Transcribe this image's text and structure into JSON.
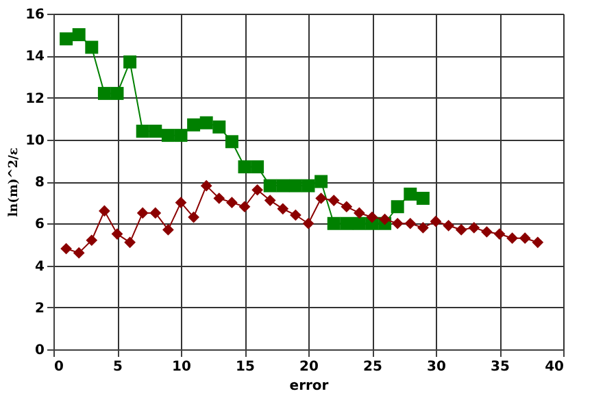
{
  "chart_data": {
    "type": "line",
    "xlabel": "error",
    "ylabel": "ln(m)^2/ε",
    "xlim": [
      0,
      40
    ],
    "xticks": [
      0,
      5,
      10,
      15,
      20,
      25,
      30,
      35,
      40
    ],
    "ylim": [
      0,
      16
    ],
    "yticks": [
      0,
      2,
      4,
      6,
      8,
      10,
      12,
      14,
      16
    ],
    "grid": true,
    "series": [
      {
        "color": "#008000",
        "marker": "square",
        "x": [
          1,
          2,
          3,
          4,
          5,
          6,
          7,
          8,
          9,
          10,
          11,
          12,
          13,
          14,
          15,
          16,
          17,
          18,
          19,
          20,
          21,
          22,
          23,
          24,
          25,
          26,
          27,
          28,
          29
        ],
        "values": [
          14.8,
          15.0,
          14.4,
          12.2,
          12.2,
          13.7,
          10.4,
          10.4,
          10.2,
          10.2,
          10.7,
          10.8,
          10.6,
          9.9,
          8.7,
          8.7,
          7.8,
          7.8,
          7.8,
          7.8,
          8.0,
          6.0,
          6.0,
          6.0,
          6.0,
          6.0,
          6.8,
          7.4,
          7.2
        ]
      },
      {
        "color": "#8b0000",
        "marker": "diamond",
        "x": [
          1,
          2,
          3,
          4,
          5,
          6,
          7,
          8,
          9,
          10,
          11,
          12,
          13,
          14,
          15,
          16,
          17,
          18,
          19,
          20,
          21,
          22,
          23,
          24,
          25,
          26,
          27,
          28,
          29,
          30,
          31,
          32,
          33,
          34,
          35,
          36,
          37,
          38
        ],
        "values": [
          4.8,
          4.6,
          5.2,
          6.6,
          5.5,
          5.1,
          6.5,
          6.5,
          5.7,
          7.0,
          6.3,
          7.8,
          7.2,
          7.0,
          6.8,
          7.6,
          7.1,
          6.7,
          6.4,
          6.0,
          7.2,
          7.1,
          6.8,
          6.5,
          6.3,
          6.2,
          6.0,
          6.0,
          5.8,
          6.1,
          5.9,
          5.7,
          5.8,
          5.6,
          5.5,
          5.3,
          5.3,
          5.1
        ]
      }
    ]
  }
}
